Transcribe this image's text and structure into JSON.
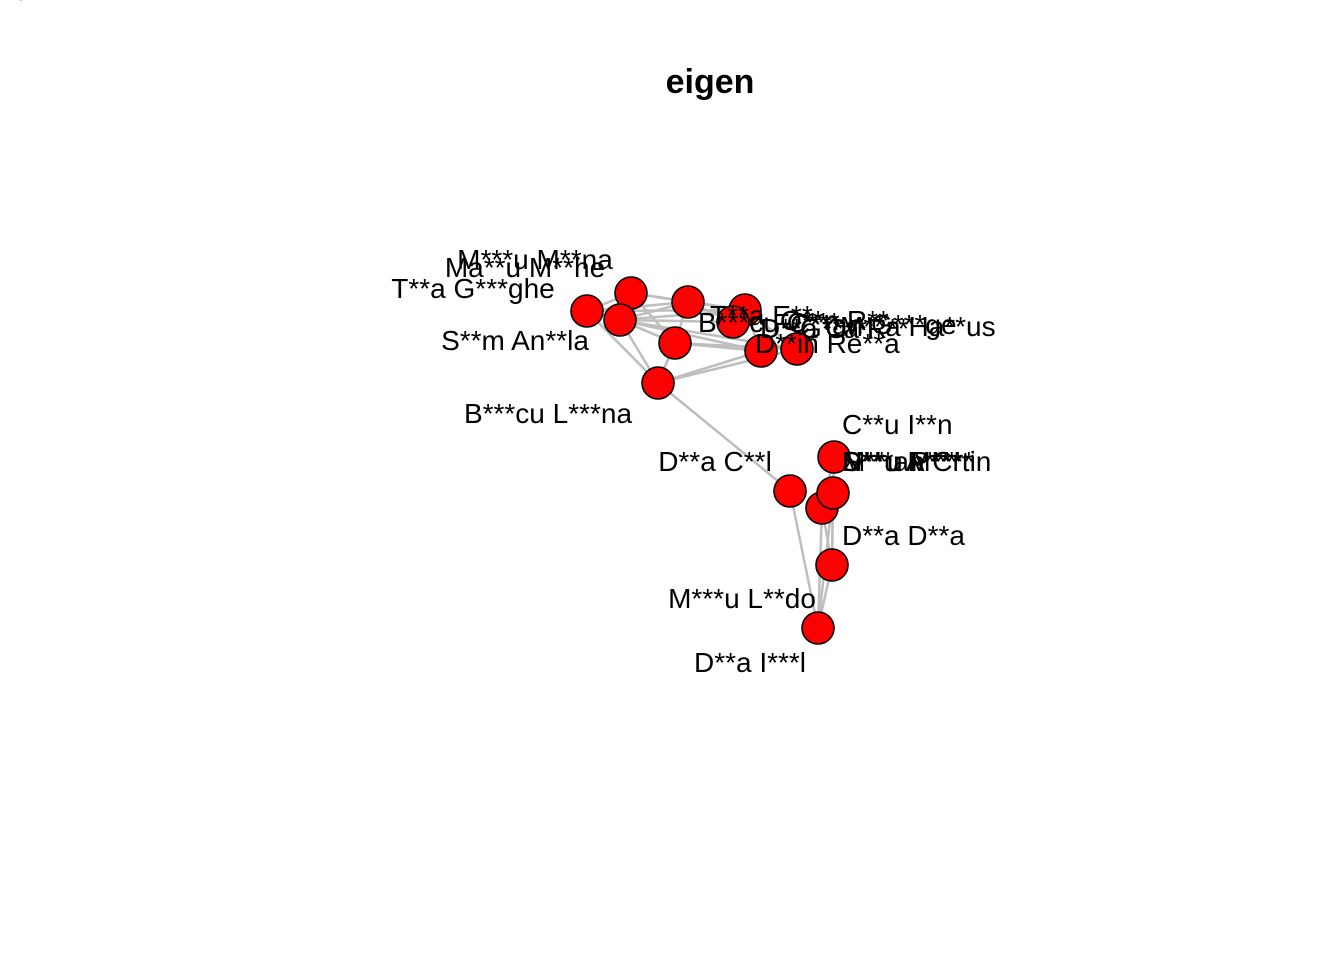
{
  "title": "eigen",
  "colors": {
    "node_fill": "#ff0000",
    "node_stroke": "#000000",
    "edge": "#bebebe",
    "background": "#ffffff"
  },
  "nodes": [
    {
      "id": "ma_mi",
      "label": "Ma**u M**he"
    },
    {
      "id": "m_mna",
      "label": "M***u M**na"
    },
    {
      "id": "t_g",
      "label": "T**a G***ghe"
    },
    {
      "id": "s_an",
      "label": "S**m An**la"
    },
    {
      "id": "b_l",
      "label": "B***cu L***na"
    },
    {
      "id": "n_top3",
      "label": ""
    },
    {
      "id": "b_c",
      "label": "B***cu C***"
    },
    {
      "id": "t_e",
      "label": "T**a E**"
    },
    {
      "id": "c_g",
      "label": "C**an G***ge"
    },
    {
      "id": "d_c2",
      "label": "D**a C**l"
    },
    {
      "id": "o_r",
      "label": "O**n R**"
    },
    {
      "id": "g_r",
      "label": "G**a R**"
    },
    {
      "id": "m_ha",
      "label": "M**a Ha**us"
    },
    {
      "id": "b_u",
      "label": "B**u U**"
    },
    {
      "id": "d_r",
      "label": "D**in Re**a"
    },
    {
      "id": "d_cl",
      "label": "D**a C**l"
    },
    {
      "id": "c_i",
      "label": "C**u I**n"
    },
    {
      "id": "s_c",
      "label": "S***an C**"
    },
    {
      "id": "n_a",
      "label": "N**u A***"
    },
    {
      "id": "m_p",
      "label": "M**u P***"
    },
    {
      "id": "d_m",
      "label": "D**u M**rtin"
    },
    {
      "id": "d_d",
      "label": "D**a D**a"
    },
    {
      "id": "m_l",
      "label": "M***u L**do"
    },
    {
      "id": "d_i",
      "label": "D**a I***l"
    }
  ],
  "edges": [
    [
      "t_g",
      "m_mna"
    ],
    [
      "t_g",
      "s_an"
    ],
    [
      "t_g",
      "b_l"
    ],
    [
      "t_g",
      "n_top3"
    ],
    [
      "t_g",
      "b_c"
    ],
    [
      "m_mna",
      "s_an"
    ],
    [
      "m_mna",
      "n_top3"
    ],
    [
      "m_mna",
      "b_c"
    ],
    [
      "m_mna",
      "b_u"
    ],
    [
      "s_an",
      "n_top3"
    ],
    [
      "s_an",
      "b_c"
    ],
    [
      "s_an",
      "t_e"
    ],
    [
      "s_an",
      "d_r"
    ],
    [
      "s_an",
      "b_u"
    ],
    [
      "s_an",
      "b_l"
    ],
    [
      "n_top3",
      "b_c"
    ],
    [
      "n_top3",
      "t_e"
    ],
    [
      "n_top3",
      "b_u"
    ],
    [
      "b_c",
      "t_e"
    ],
    [
      "b_c",
      "d_r"
    ],
    [
      "b_u",
      "d_r"
    ],
    [
      "b_u",
      "b_l"
    ],
    [
      "b_u",
      "s_an"
    ],
    [
      "b_l",
      "d_r"
    ],
    [
      "b_l",
      "b_u"
    ],
    [
      "b_l",
      "d_cl"
    ],
    [
      "d_r",
      "b_c"
    ],
    [
      "d_cl",
      "d_i"
    ],
    [
      "c_i",
      "d_m"
    ],
    [
      "c_i",
      "s_c"
    ],
    [
      "d_m",
      "s_c"
    ],
    [
      "d_m",
      "d_d"
    ],
    [
      "d_m",
      "d_i"
    ],
    [
      "s_c",
      "d_d"
    ],
    [
      "s_c",
      "d_i"
    ],
    [
      "d_d",
      "d_i"
    ],
    [
      "d_d",
      "d_m"
    ]
  ]
}
